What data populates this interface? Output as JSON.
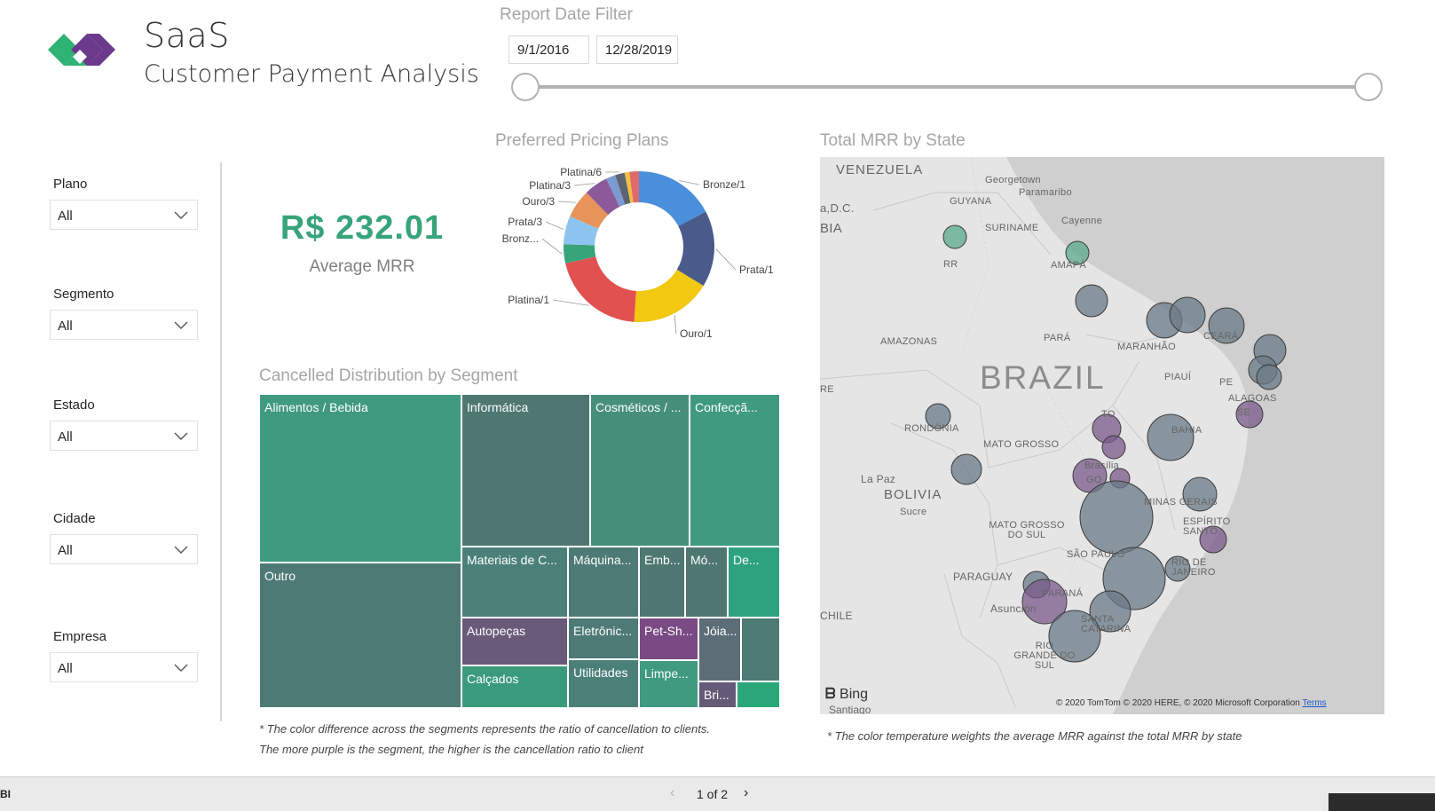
{
  "header": {
    "title_line1": "SaaS",
    "title_line2": "Customer Payment Analysis",
    "logo_colors": [
      "#2fb374",
      "#6b3a8c"
    ]
  },
  "date_filter": {
    "label": "Report Date Filter",
    "start": "9/1/2016",
    "end": "12/28/2019"
  },
  "slicers": [
    {
      "label": "Plano",
      "value": "All"
    },
    {
      "label": "Segmento",
      "value": "All"
    },
    {
      "label": "Estado",
      "value": "All"
    },
    {
      "label": "Cidade",
      "value": "All"
    },
    {
      "label": "Empresa",
      "value": "All"
    }
  ],
  "kpi": {
    "value": "R$ 232.01",
    "label": "Average MRR",
    "color": "#37a47a"
  },
  "donut": {
    "title": "Preferred Pricing Plans",
    "slices": [
      {
        "label": "Bronze/1",
        "value": 17,
        "color": "#4a8fdc"
      },
      {
        "label": "Prata/1",
        "value": 16,
        "color": "#4a5a8a"
      },
      {
        "label": "Ouro/1",
        "value": 17,
        "color": "#f2c811"
      },
      {
        "label": "Platina/1",
        "value": 20,
        "color": "#e0514f"
      },
      {
        "label": "Bronz...",
        "value": 4,
        "color": "#37a47a"
      },
      {
        "label": "Prata/3",
        "value": 6,
        "color": "#8dc4f0"
      },
      {
        "label": "Ouro/3",
        "value": 6,
        "color": "#e8935a"
      },
      {
        "label": "Platina/3",
        "value": 5,
        "color": "#8c5a9a"
      },
      {
        "label": "",
        "value": 2,
        "color": "#7a9bd1"
      },
      {
        "label": "Platina/6",
        "value": 2,
        "color": "#5b6470"
      },
      {
        "label": "",
        "value": 1,
        "color": "#f0c040"
      },
      {
        "label": "",
        "value": 2,
        "color": "#e06a6a"
      }
    ]
  },
  "treemap": {
    "title": "Cancelled Distribution by Segment",
    "tiles": [
      {
        "label": "Alimentos / Bebida",
        "color": "#3f9a80"
      },
      {
        "label": "Outro",
        "color": "#4d7a74"
      },
      {
        "label": "Informática",
        "color": "#4e7772"
      },
      {
        "label": "Cosméticos / ...",
        "color": "#46907a"
      },
      {
        "label": "Confecçã...",
        "color": "#3f9a80"
      },
      {
        "label": "Materiais de C...",
        "color": "#4a8078"
      },
      {
        "label": "Máquina...",
        "color": "#4d7a74"
      },
      {
        "label": "Emb...",
        "color": "#4e7772"
      },
      {
        "label": "Mó...",
        "color": "#4e7772"
      },
      {
        "label": "De...",
        "color": "#2ea27e"
      },
      {
        "label": "Autopeças",
        "color": "#695a7a"
      },
      {
        "label": "Eletrônic...",
        "color": "#4d7a74"
      },
      {
        "label": "Utilidades",
        "color": "#4a8078"
      },
      {
        "label": "Pet-Sh...",
        "color": "#7a4a85"
      },
      {
        "label": "Jóia...",
        "color": "#5d6d78"
      },
      {
        "label": "",
        "color": "#4d7a74"
      },
      {
        "label": "Calçados",
        "color": "#3a9a7c"
      },
      {
        "label": "Limpe...",
        "color": "#3f9a80"
      },
      {
        "label": "Bri...",
        "color": "#655a78"
      },
      {
        "label": "",
        "color": "#2aa87a"
      }
    ],
    "note_line1": "* The color difference across the segments represents the ratio of cancellation to clients.",
    "note_line2": "The more purple is the segment, the higher is the cancellation ratio to client"
  },
  "map": {
    "title": "Total MRR by State",
    "labels": {
      "venezuela": "VENEZUELA",
      "georgetown": "Georgetown",
      "paramaribo": "Paramaribo",
      "guyana": "GUYANA",
      "suriname": "SURINAME",
      "cayenne": "Cayenne",
      "dc": "a,D.C.",
      "bia": "BIA",
      "rr": "RR",
      "amapa": "AMAPÁ",
      "amazonas": "AMAZONAS",
      "para": "PARÁ",
      "maranhao": "MARANHÃO",
      "ceara": "CEARÁ",
      "piaui": "PIAUÍ",
      "pe": "PE",
      "alagoas": "ALAGOAS",
      "se": "SE",
      "bahia": "BAHIA",
      "to": "TO",
      "brazil": "BRAZIL",
      "re": "RE",
      "rondonia": "RONDÔNIA",
      "mato_grosso": "MATO GROSSO",
      "la_paz": "La Paz",
      "bolivia": "BOLIVIA",
      "sucre": "Sucre",
      "brasilia": "Brasília",
      "go": "GO",
      "minas": "MINAS GERAIS",
      "espirito": "ESPÍRITO SANTO",
      "ms": "MATO GROSSO DO SUL",
      "sao_paulo": "SÃO PAULO",
      "rio": "RIO DE JANEIRO",
      "paraguay": "PARAGUAY",
      "parana": "PARANÁ",
      "asuncion": "Asunción",
      "chile": "CHILE",
      "sc": "SANTA CATARINA",
      "rs": "RIO GRANDE DO SUL",
      "santiago": "Santiago"
    },
    "bing": "Bing",
    "attribution": "© 2020 TomTom © 2020 HERE, © 2020 Microsoft Corporation",
    "terms": "Terms",
    "note": "* The color temperature weights the average MRR against the total MRR by state",
    "bubble_colors": {
      "green": "#5aa88a",
      "slate": "#6a7a86",
      "purple": "#7a5a8a"
    }
  },
  "footer": {
    "brand": "BI",
    "page": "1 of 2"
  }
}
